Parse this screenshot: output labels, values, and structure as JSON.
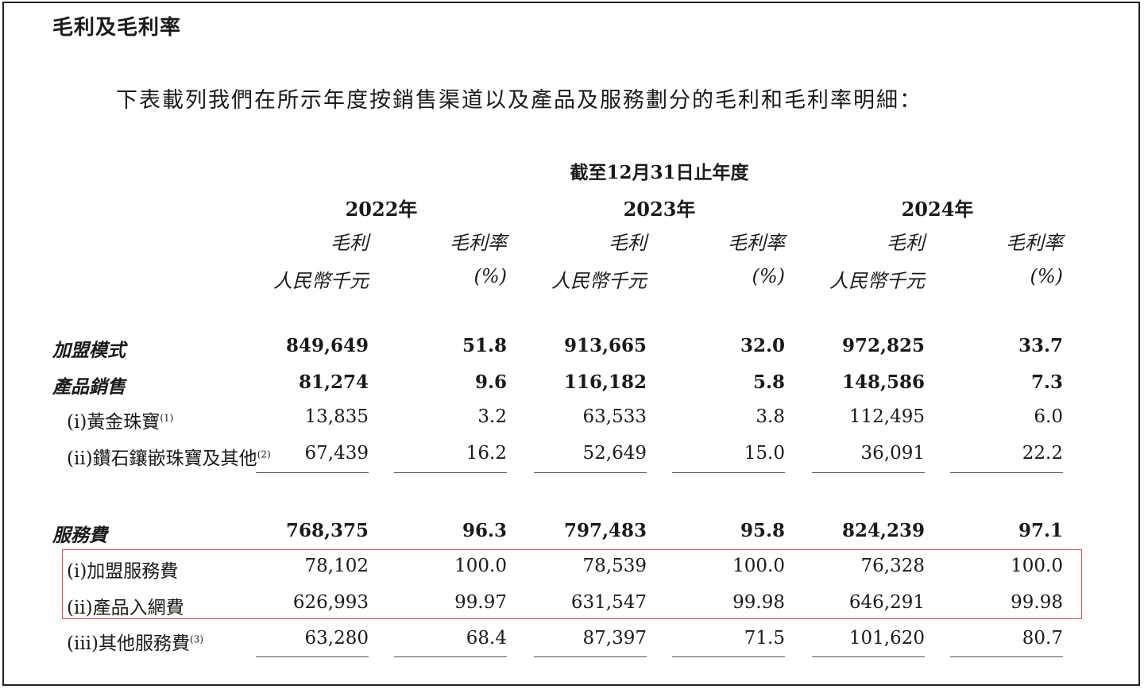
{
  "title": "毛利及毛利率",
  "intro": "下表載列我們在所示年度按銷售渠道以及產品及服務劃分的毛利和毛利率明細：",
  "period_header": "截至12月31日止年度",
  "years": [
    "2022年",
    "2023年",
    "2024年"
  ],
  "col_headers": {
    "gp_label": "毛利",
    "gp_unit": "人民幣千元",
    "gm_label": "毛利率",
    "gm_unit": "(%)"
  },
  "rows": [
    {
      "label": "加盟模式",
      "note": "",
      "values": [
        "849,649",
        "51.8",
        "913,665",
        "32.0",
        "972,825",
        "33.7"
      ]
    },
    {
      "label": "產品銷售",
      "note": "",
      "values": [
        "81,274",
        "9.6",
        "116,182",
        "5.8",
        "148,586",
        "7.3"
      ]
    },
    {
      "label": "(i)黃金珠寶",
      "note": "(1)",
      "values": [
        "13,835",
        "3.2",
        "63,533",
        "3.8",
        "112,495",
        "6.0"
      ]
    },
    {
      "label": "(ii)鑽石鑲嵌珠寶及其他",
      "note": "(2)",
      "values": [
        "67,439",
        "16.2",
        "52,649",
        "15.0",
        "36,091",
        "22.2"
      ]
    },
    {
      "label": "服務費",
      "note": "",
      "values": [
        "768,375",
        "96.3",
        "797,483",
        "95.8",
        "824,239",
        "97.1"
      ]
    },
    {
      "label": "(i)加盟服務費",
      "note": "",
      "values": [
        "78,102",
        "100.0",
        "78,539",
        "100.0",
        "76,328",
        "100.0"
      ]
    },
    {
      "label": "(ii)產品入網費",
      "note": "",
      "values": [
        "626,993",
        "99.97",
        "631,547",
        "99.98",
        "646,291",
        "99.98"
      ]
    },
    {
      "label": "(iii)其他服務費",
      "note": "(3)",
      "values": [
        "63,280",
        "68.4",
        "87,397",
        "71.5",
        "101,620",
        "80.7"
      ]
    }
  ],
  "highlight_color": "#d9534f"
}
